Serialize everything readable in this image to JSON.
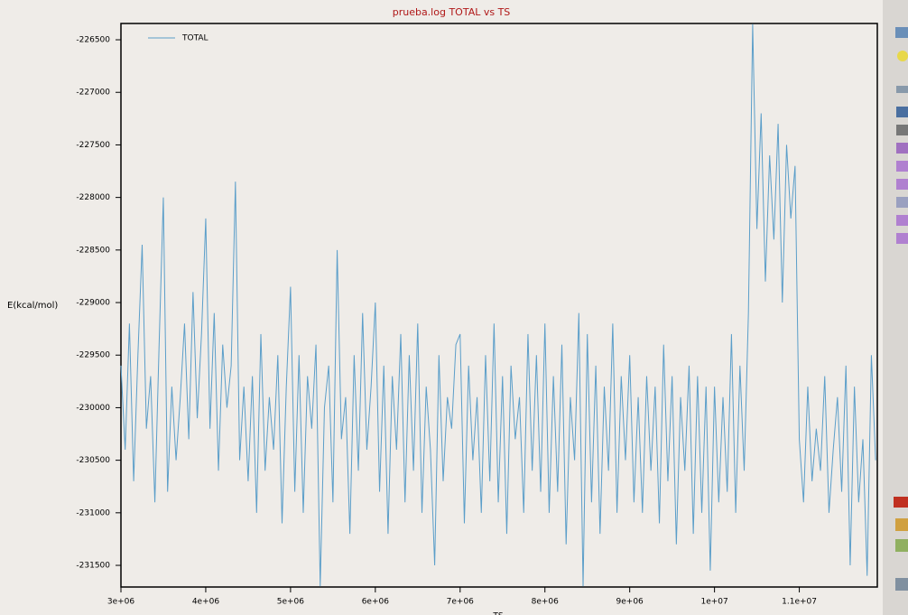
{
  "chart_data": {
    "type": "line",
    "title": "prueba.log TOTAL vs TS",
    "xlabel": "TS",
    "ylabel": "E(kcal/mol)",
    "legend": "upper left",
    "grid": false,
    "xlim": [
      3000000,
      11920000
    ],
    "ylim": [
      -231706,
      -226345
    ],
    "xticks": [
      {
        "value": 3000000,
        "label": "3e+06"
      },
      {
        "value": 4000000,
        "label": "4e+06"
      },
      {
        "value": 5000000,
        "label": "5e+06"
      },
      {
        "value": 6000000,
        "label": "6e+06"
      },
      {
        "value": 7000000,
        "label": "7e+06"
      },
      {
        "value": 8000000,
        "label": "8e+06"
      },
      {
        "value": 9000000,
        "label": "9e+06"
      },
      {
        "value": 10000000,
        "label": "1e+07"
      },
      {
        "value": 11000000,
        "label": "1.1e+07"
      }
    ],
    "yticks": [
      -231500,
      -231000,
      -230500,
      -230000,
      -229500,
      -229000,
      -228500,
      -228000,
      -227500,
      -227000,
      -226500
    ],
    "x": [
      3000000,
      3050000,
      3100000,
      3150000,
      3200000,
      3250000,
      3300000,
      3350000,
      3400000,
      3450000,
      3500000,
      3550000,
      3600000,
      3650000,
      3700000,
      3750000,
      3800000,
      3850000,
      3900000,
      3950000,
      4000000,
      4050000,
      4100000,
      4150000,
      4200000,
      4250000,
      4300000,
      4350000,
      4400000,
      4450000,
      4500000,
      4550000,
      4600000,
      4650000,
      4700000,
      4750000,
      4800000,
      4850000,
      4900000,
      4950000,
      5000000,
      5050000,
      5100000,
      5150000,
      5200000,
      5250000,
      5300000,
      5350000,
      5400000,
      5450000,
      5500000,
      5550000,
      5600000,
      5650000,
      5700000,
      5750000,
      5800000,
      5850000,
      5900000,
      5950000,
      6000000,
      6050000,
      6100000,
      6150000,
      6200000,
      6250000,
      6300000,
      6350000,
      6400000,
      6450000,
      6500000,
      6550000,
      6600000,
      6650000,
      6700000,
      6750000,
      6800000,
      6850000,
      6900000,
      6950000,
      7000000,
      7050000,
      7100000,
      7150000,
      7200000,
      7250000,
      7300000,
      7350000,
      7400000,
      7450000,
      7500000,
      7550000,
      7600000,
      7650000,
      7700000,
      7750000,
      7800000,
      7850000,
      7900000,
      7950000,
      8000000,
      8050000,
      8100000,
      8150000,
      8200000,
      8250000,
      8300000,
      8350000,
      8400000,
      8450000,
      8500000,
      8550000,
      8600000,
      8650000,
      8700000,
      8750000,
      8800000,
      8850000,
      8900000,
      8950000,
      9000000,
      9050000,
      9100000,
      9150000,
      9200000,
      9250000,
      9300000,
      9350000,
      9400000,
      9450000,
      9500000,
      9550000,
      9600000,
      9650000,
      9700000,
      9750000,
      9800000,
      9850000,
      9900000,
      9950000,
      10000000,
      10050000,
      10100000,
      10150000,
      10200000,
      10250000,
      10300000,
      10350000,
      10400000,
      10450000,
      10500000,
      10550000,
      10600000,
      10650000,
      10700000,
      10750000,
      10800000,
      10850000,
      10900000,
      10950000,
      11000000,
      11050000,
      11100000,
      11150000,
      11200000,
      11250000,
      11300000,
      11350000,
      11400000,
      11450000,
      11500000,
      11550000,
      11600000,
      11650000,
      11700000,
      11750000,
      11800000,
      11850000,
      11900000
    ],
    "series": [
      {
        "name": "TOTAL",
        "color": "#5b9ec9",
        "values": [
          -229600,
          -230400,
          -229200,
          -230700,
          -229500,
          -228450,
          -230200,
          -229700,
          -230900,
          -229400,
          -228000,
          -230800,
          -229800,
          -230500,
          -229900,
          -229200,
          -230300,
          -228900,
          -230100,
          -229300,
          -228200,
          -230200,
          -229100,
          -230600,
          -229400,
          -230000,
          -229600,
          -227850,
          -230500,
          -229800,
          -230700,
          -229700,
          -231000,
          -229300,
          -230600,
          -229900,
          -230400,
          -229500,
          -231100,
          -229800,
          -228850,
          -230800,
          -229500,
          -231000,
          -229700,
          -230200,
          -229400,
          -231700,
          -230000,
          -229600,
          -230900,
          -228500,
          -230300,
          -229900,
          -231200,
          -229500,
          -230600,
          -229100,
          -230400,
          -229800,
          -229000,
          -230800,
          -229600,
          -231200,
          -229700,
          -230400,
          -229300,
          -230900,
          -229500,
          -230600,
          -229200,
          -231000,
          -229800,
          -230400,
          -231500,
          -229500,
          -230700,
          -229900,
          -230200,
          -229400,
          -229300,
          -231100,
          -229600,
          -230500,
          -229900,
          -231000,
          -229500,
          -230700,
          -229200,
          -230900,
          -229700,
          -231200,
          -229600,
          -230300,
          -229900,
          -231000,
          -229300,
          -230600,
          -229500,
          -230800,
          -229200,
          -231000,
          -229700,
          -230800,
          -229400,
          -231300,
          -229900,
          -230500,
          -229100,
          -231700,
          -229300,
          -230900,
          -229600,
          -231200,
          -229800,
          -230600,
          -229200,
          -231000,
          -229700,
          -230500,
          -229500,
          -230900,
          -229900,
          -231000,
          -229700,
          -230600,
          -229800,
          -231100,
          -229400,
          -230700,
          -229700,
          -231300,
          -229900,
          -230600,
          -229600,
          -231200,
          -229700,
          -231000,
          -229800,
          -231550,
          -229800,
          -230900,
          -229900,
          -230800,
          -229300,
          -231000,
          -229600,
          -230600,
          -229100,
          -226350,
          -228300,
          -227200,
          -228800,
          -227600,
          -228400,
          -227300,
          -229000,
          -227500,
          -228200,
          -227700,
          -230300,
          -230900,
          -229800,
          -230700,
          -230200,
          -230600,
          -229700,
          -231000,
          -230400,
          -229900,
          -230800,
          -229600,
          -231500,
          -229800,
          -230900,
          -230300,
          -231600,
          -229500,
          -230500
        ]
      }
    ]
  }
}
